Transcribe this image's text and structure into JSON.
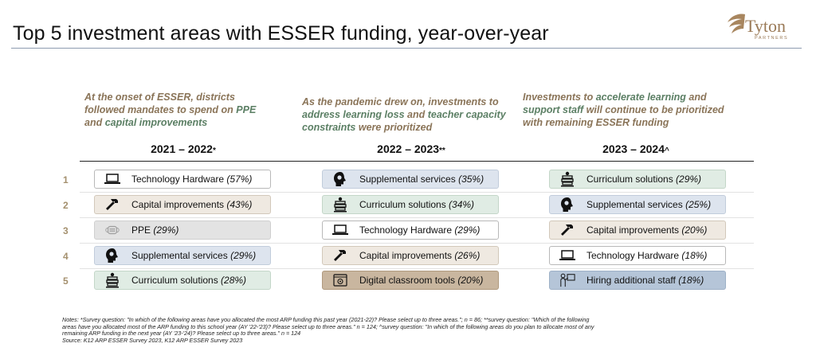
{
  "title": "Top 5 investment areas with ESSER funding, year-over-year",
  "logo": {
    "name": "Tyton",
    "sub": "PARTNERS"
  },
  "columns": [
    {
      "desc_parts": [
        "At the onset of ESSER, districts followed mandates to spend on ",
        "PPE",
        " and ",
        "capital improvements"
      ],
      "year": "2021 – 2022",
      "mark": "*"
    },
    {
      "desc_parts": [
        "As the pandemic drew on, investments to ",
        "address learning loss",
        " and ",
        "teacher capacity constraints",
        " were prioritized"
      ],
      "year": "2022 – 2023",
      "mark": "**"
    },
    {
      "desc_parts": [
        "Investments to ",
        "accelerate learning",
        " and ",
        "support staff",
        " will continue to be prioritized with remaining ESSER funding"
      ],
      "year": "2023 – 2024",
      "mark": "^"
    }
  ],
  "ranks": [
    "1",
    "2",
    "3",
    "4",
    "5"
  ],
  "rows": [
    [
      {
        "label": "Technology Hardware",
        "pct": "(57%)",
        "icon": "laptop-icon"
      },
      {
        "label": "Supplemental services",
        "pct": "(35%)",
        "icon": "head-icon"
      },
      {
        "label": "Curriculum solutions",
        "pct": "(29%)",
        "icon": "books-icon"
      }
    ],
    [
      {
        "label": "Capital improvements",
        "pct": "(43%)",
        "icon": "hammer-icon"
      },
      {
        "label": "Curriculum solutions",
        "pct": "(34%)",
        "icon": "books-icon"
      },
      {
        "label": "Supplemental services",
        "pct": "(25%)",
        "icon": "head-icon"
      }
    ],
    [
      {
        "label": "PPE",
        "pct": "(29%)",
        "icon": "mask-icon"
      },
      {
        "label": "Technology Hardware",
        "pct": "(29%)",
        "icon": "laptop-icon"
      },
      {
        "label": "Capital improvements",
        "pct": "(20%)",
        "icon": "hammer-icon"
      }
    ],
    [
      {
        "label": "Supplemental services",
        "pct": "(29%)",
        "icon": "head-icon"
      },
      {
        "label": "Capital improvements",
        "pct": "(26%)",
        "icon": "hammer-icon"
      },
      {
        "label": "Technology Hardware",
        "pct": "(18%)",
        "icon": "laptop-icon"
      }
    ],
    [
      {
        "label": "Curriculum solutions",
        "pct": "(28%)",
        "icon": "books-icon"
      },
      {
        "label": "Digital classroom tools",
        "pct": "(20%)",
        "icon": "screen-icon"
      },
      {
        "label": "Hiring additional staff",
        "pct": "(18%)",
        "icon": "teacher-icon"
      }
    ]
  ],
  "notes": [
    "Notes: *Survey question: \"In which of the following areas have you allocated the most ARP funding this past year (2021-22)? Please select up to three areas.\"; n = 86; **survey question: \"Which of the following",
    "areas have you allocated most of the ARP funding to this school year (AY '22-'23)? Please select up to three areas.\" n = 124; ^survey question: \"In which of the following areas do you plan to allocate most of any",
    "remaining ARP funding in the next year (AY '23-'24)? Please select up to three areas.\" n = 124",
    "Source: K12 ARP ESSER Survey 2023, K12 ARP ESSER Survey 2023"
  ],
  "colors": {
    "accent_text": "#8a7458",
    "highlight_text": "#5b7f64",
    "rank_text": "#a4906e",
    "digital_pill": "#c9b69f",
    "hiring_pill": "#b5c5d8"
  }
}
